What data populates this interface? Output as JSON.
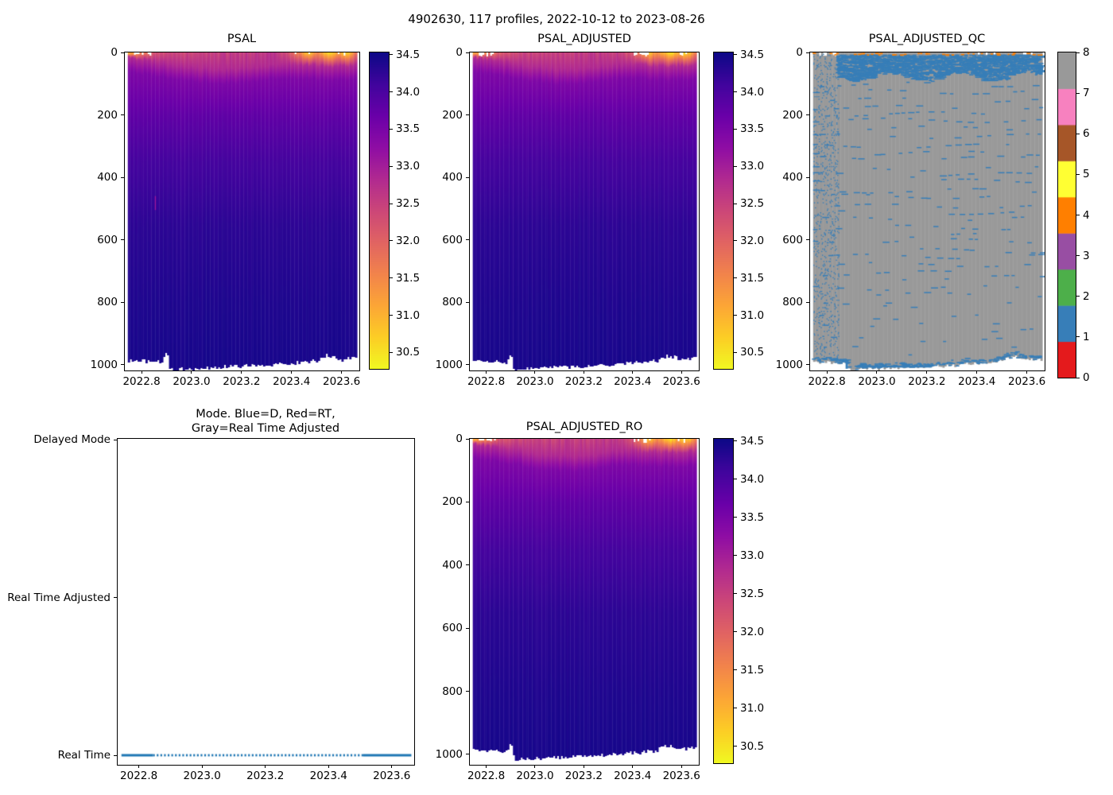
{
  "figure": {
    "title": "4902630, 117 profiles, 2022-10-12 to 2023-08-26"
  },
  "colormap": {
    "name": "plasma_r",
    "stops": [
      [
        0.0,
        "#0d0887"
      ],
      [
        0.1,
        "#41049d"
      ],
      [
        0.2,
        "#6a00a8"
      ],
      [
        0.3,
        "#8f0da4"
      ],
      [
        0.4,
        "#b12a90"
      ],
      [
        0.5,
        "#cc4778"
      ],
      [
        0.6,
        "#e16462"
      ],
      [
        0.7,
        "#f2844b"
      ],
      [
        0.8,
        "#fca636"
      ],
      [
        0.9,
        "#fcce25"
      ],
      [
        1.0,
        "#f0f921"
      ]
    ]
  },
  "qc_palette": {
    "colors": [
      "#e41a1c",
      "#377eb8",
      "#4daf4a",
      "#984ea3",
      "#ff7f00",
      "#ffff33",
      "#a65628",
      "#f781bf",
      "#999999"
    ],
    "labels": [
      "0",
      "1",
      "2",
      "3",
      "4",
      "5",
      "6",
      "7",
      "8"
    ]
  },
  "chart_data": [
    {
      "id": "psal",
      "type": "heatmap",
      "title": "PSAL",
      "xlim": [
        2022.733,
        2023.671
      ],
      "ylim": [
        0,
        1019
      ],
      "xticks": {
        "labels": [
          "2022.8",
          "2023.0",
          "2023.2",
          "2023.4",
          "2023.6"
        ],
        "values": [
          2022.8,
          2023.0,
          2023.2,
          2023.4,
          2023.6
        ]
      },
      "yticks": {
        "labels": [
          "0",
          "200",
          "400",
          "600",
          "800",
          "1000"
        ],
        "values": [
          0,
          200,
          400,
          600,
          800,
          1000
        ]
      },
      "data_trange": [
        2022.745,
        2023.662
      ],
      "n_profiles": 117,
      "colorbar": {
        "clim": [
          30.28,
          34.53
        ],
        "tick_labels": [
          "34.5",
          "34.0",
          "33.5",
          "33.0",
          "32.5",
          "32.0",
          "31.5",
          "31.0",
          "30.5"
        ],
        "tick_values": [
          34.5,
          34.0,
          33.5,
          33.0,
          32.5,
          32.0,
          31.5,
          31.0,
          30.5
        ]
      },
      "field": {
        "surface_salinity": [
          [
            2022.745,
            31.2
          ],
          [
            2022.78,
            31.5
          ],
          [
            2022.82,
            31.9
          ],
          [
            2022.87,
            32.3
          ],
          [
            2022.95,
            32.45
          ],
          [
            2023.05,
            32.5
          ],
          [
            2023.15,
            32.55
          ],
          [
            2023.25,
            32.6
          ],
          [
            2023.33,
            32.65
          ],
          [
            2023.4,
            32.2
          ],
          [
            2023.44,
            31.4
          ],
          [
            2023.47,
            30.9
          ],
          [
            2023.5,
            31.6
          ],
          [
            2023.53,
            31.0
          ],
          [
            2023.56,
            30.6
          ],
          [
            2023.585,
            31.3
          ],
          [
            2023.61,
            30.8
          ],
          [
            2023.635,
            31.0
          ],
          [
            2023.66,
            31.9
          ]
        ],
        "pycnocline_depth": [
          [
            2022.745,
            16
          ],
          [
            2022.8,
            22
          ],
          [
            2022.85,
            28
          ],
          [
            2022.92,
            36
          ],
          [
            2023.0,
            46
          ],
          [
            2023.1,
            54
          ],
          [
            2023.2,
            52
          ],
          [
            2023.3,
            42
          ],
          [
            2023.38,
            36
          ],
          [
            2023.45,
            40
          ],
          [
            2023.55,
            44
          ],
          [
            2023.66,
            40
          ]
        ],
        "pycnocline_thickness": 45,
        "s_pycnocline_top": 32.85,
        "s_pycnocline_bottom": 33.45,
        "deep_salinity": [
          [
            200,
            33.78
          ],
          [
            350,
            34.06
          ],
          [
            550,
            34.27
          ],
          [
            800,
            34.38
          ],
          [
            1035,
            34.45
          ]
        ],
        "bottom_depth": [
          [
            2022.745,
            986
          ],
          [
            2022.87,
            990
          ],
          [
            2022.885,
            992
          ],
          [
            2022.895,
            968
          ],
          [
            2022.905,
            970
          ],
          [
            2022.915,
            1014
          ],
          [
            2023.0,
            1012
          ],
          [
            2023.1,
            1008
          ],
          [
            2023.2,
            1004
          ],
          [
            2023.3,
            1002
          ],
          [
            2023.35,
            996
          ],
          [
            2023.45,
            992
          ],
          [
            2023.5,
            986
          ],
          [
            2023.54,
            970
          ],
          [
            2023.57,
            974
          ],
          [
            2023.6,
            984
          ],
          [
            2023.63,
            978
          ],
          [
            2023.66,
            980
          ]
        ],
        "top_gap_ranges": [
          [
            2022.765,
            2022.85
          ],
          [
            2023.4,
            2023.475
          ],
          [
            2023.58,
            2023.63
          ]
        ],
        "artifacts": [
          {
            "t": 2022.853,
            "z0": 460,
            "z1": 505,
            "s": 33.1
          }
        ]
      },
      "seed": 7
    },
    {
      "id": "psal_adjusted",
      "type": "heatmap",
      "title": "PSAL_ADJUSTED",
      "xlim": [
        2022.733,
        2023.671
      ],
      "ylim": [
        0,
        1019
      ],
      "xticks": {
        "labels": [
          "2022.8",
          "2023.0",
          "2023.2",
          "2023.4",
          "2023.6"
        ],
        "values": [
          2022.8,
          2023.0,
          2023.2,
          2023.4,
          2023.6
        ]
      },
      "yticks": {
        "labels": [
          "0",
          "200",
          "400",
          "600",
          "800",
          "1000"
        ],
        "values": [
          0,
          200,
          400,
          600,
          800,
          1000
        ]
      },
      "data_trange": [
        2022.745,
        2023.662
      ],
      "n_profiles": 117,
      "colorbar": {
        "clim": [
          30.28,
          34.53
        ],
        "tick_labels": [
          "34.5",
          "34.0",
          "33.5",
          "33.0",
          "32.5",
          "32.0",
          "31.5",
          "31.0",
          "30.5"
        ],
        "tick_values": [
          34.5,
          34.0,
          33.5,
          33.0,
          32.5,
          32.0,
          31.5,
          31.0,
          30.5
        ]
      },
      "field_same_as": 0,
      "seed": 11
    },
    {
      "id": "psal_adjusted_qc",
      "type": "heatmap-categorical",
      "title": "PSAL_ADJUSTED_QC",
      "xlim": [
        2022.733,
        2023.671
      ],
      "ylim": [
        0,
        1019
      ],
      "xticks": {
        "labels": [
          "2022.8",
          "2023.0",
          "2023.2",
          "2023.4",
          "2023.6"
        ],
        "values": [
          2022.8,
          2023.0,
          2023.2,
          2023.4,
          2023.6
        ]
      },
      "yticks": {
        "labels": [
          "0",
          "200",
          "400",
          "600",
          "800",
          "1000"
        ],
        "values": [
          0,
          200,
          400,
          600,
          800,
          1000
        ]
      },
      "data_trange": [
        2022.745,
        2023.662
      ],
      "n_profiles": 117,
      "colorbar": {
        "tick_labels": [
          "0",
          "1",
          "2",
          "3",
          "4",
          "5",
          "6",
          "7",
          "8"
        ]
      },
      "qc_field": {
        "background_qc": 8,
        "speckle_qc": 1,
        "surface_qc": 4,
        "dense_band_depth": [
          7,
          72
        ],
        "stipple_tmax": 2022.85,
        "bottom_line": {
          "t0": 2022.92,
          "t1": 2023.22,
          "depth": 1003
        },
        "bottom_depth": [
          [
            2022.745,
            992
          ],
          [
            2022.87,
            996
          ],
          [
            2022.885,
            998
          ],
          [
            2022.895,
            1030
          ],
          [
            2022.905,
            1032
          ],
          [
            2022.915,
            1016
          ],
          [
            2023.0,
            1014
          ],
          [
            2023.1,
            1010
          ],
          [
            2023.2,
            1006
          ],
          [
            2023.3,
            1004
          ],
          [
            2023.35,
            998
          ],
          [
            2023.45,
            994
          ],
          [
            2023.5,
            988
          ],
          [
            2023.54,
            974
          ],
          [
            2023.57,
            978
          ],
          [
            2023.6,
            986
          ],
          [
            2023.63,
            982
          ],
          [
            2023.66,
            984
          ]
        ],
        "top_gap_ranges": [
          [
            2022.765,
            2022.85
          ],
          [
            2023.4,
            2023.475
          ],
          [
            2023.58,
            2023.63
          ]
        ]
      },
      "seed": 21
    },
    {
      "id": "mode",
      "type": "line",
      "title_lines": [
        "Mode. Blue=D, Red=RT,",
        "Gray=Real Time Adjusted"
      ],
      "xlim": [
        2022.733,
        2023.671
      ],
      "xticks": {
        "labels": [
          "2022.8",
          "2023.0",
          "2023.2",
          "2023.4",
          "2023.6"
        ],
        "values": [
          2022.8,
          2023.0,
          2023.2,
          2023.4,
          2023.6
        ]
      },
      "yticks": {
        "labels": [
          "Delayed Mode",
          "Real Time Adjusted",
          "Real Time"
        ],
        "values": [
          2,
          1,
          0
        ]
      },
      "series": [
        {
          "name": "mode",
          "color": "#1f77b4",
          "level_label": "Real Time",
          "level_value": 0,
          "segments": [
            {
              "t0": 2022.745,
              "t1": 2022.845,
              "style": "solid"
            },
            {
              "t0": 2022.845,
              "t1": 2023.51,
              "style": "dotted"
            },
            {
              "t0": 2023.51,
              "t1": 2023.662,
              "style": "solid"
            }
          ]
        }
      ],
      "seed": 3
    },
    {
      "id": "psal_adjusted_ro",
      "type": "heatmap",
      "title": "PSAL_ADJUSTED_RO",
      "xlim": [
        2022.733,
        2023.671
      ],
      "ylim": [
        0,
        1033
      ],
      "xticks": {
        "labels": [
          "2022.8",
          "2023.0",
          "2023.2",
          "2023.4",
          "2023.6"
        ],
        "values": [
          2022.8,
          2023.0,
          2023.2,
          2023.4,
          2023.6
        ]
      },
      "yticks": {
        "labels": [
          "0",
          "200",
          "400",
          "600",
          "800",
          "1000"
        ],
        "values": [
          0,
          200,
          400,
          600,
          800,
          1000
        ]
      },
      "data_trange": [
        2022.745,
        2023.662
      ],
      "n_profiles": 117,
      "colorbar": {
        "clim": [
          30.28,
          34.53
        ],
        "tick_labels": [
          "34.5",
          "34.0",
          "33.5",
          "33.0",
          "32.5",
          "32.0",
          "31.5",
          "31.0",
          "30.5"
        ],
        "tick_values": [
          34.5,
          34.0,
          33.5,
          33.0,
          32.5,
          32.0,
          31.5,
          31.0,
          30.5
        ]
      },
      "field_same_as": 0,
      "seed": 13
    }
  ]
}
